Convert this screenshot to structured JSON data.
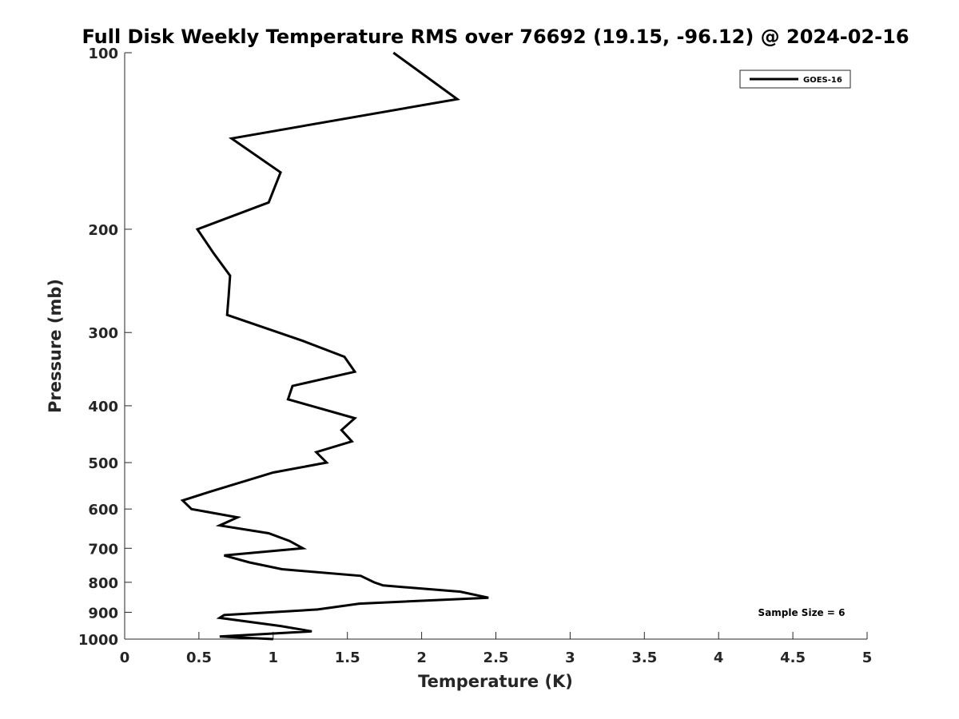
{
  "chart_data": {
    "type": "line",
    "title": "Full Disk Weekly Temperature RMS over 76692 (19.15, -96.12) @ 2024-02-16",
    "xlabel": "Temperature (K)",
    "ylabel": "Pressure (mb)",
    "xlim": [
      0,
      5
    ],
    "ylim": [
      100,
      1000
    ],
    "y_scale": "log",
    "y_reversed": true,
    "x_ticks": [
      "0",
      "0.5",
      "1",
      "1.5",
      "2",
      "2.5",
      "3",
      "3.5",
      "4",
      "4.5",
      "5"
    ],
    "y_ticks": [
      "100",
      "200",
      "300",
      "400",
      "500",
      "600",
      "700",
      "800",
      "900",
      "1000"
    ],
    "grid": false,
    "legend_position": "top-right",
    "annotation": "Sample Size = 6",
    "line_color": "#000000",
    "series": [
      {
        "name": "GOES-16",
        "x": [
          1.81,
          2.24,
          0.72,
          1.05,
          0.97,
          0.49,
          0.6,
          0.71,
          0.7,
          0.69,
          1.2,
          1.48,
          1.55,
          1.13,
          1.1,
          1.55,
          1.46,
          1.53,
          1.29,
          1.36,
          1.0,
          0.58,
          0.39,
          0.45,
          0.76,
          0.64,
          0.97,
          1.11,
          1.2,
          0.67,
          0.84,
          1.06,
          1.59,
          1.68,
          1.74,
          2.26,
          2.45,
          1.58,
          1.3,
          0.67,
          0.64,
          1.05,
          1.26,
          0.64,
          1.0
        ],
        "y": [
          100,
          120,
          140,
          160,
          180,
          200,
          220,
          240,
          260,
          280,
          310,
          330,
          350,
          370,
          390,
          420,
          440,
          460,
          480,
          500,
          520,
          560,
          580,
          600,
          620,
          640,
          660,
          680,
          700,
          720,
          740,
          760,
          780,
          800,
          810,
          830,
          850,
          870,
          890,
          910,
          920,
          950,
          970,
          990,
          1000
        ]
      }
    ]
  }
}
